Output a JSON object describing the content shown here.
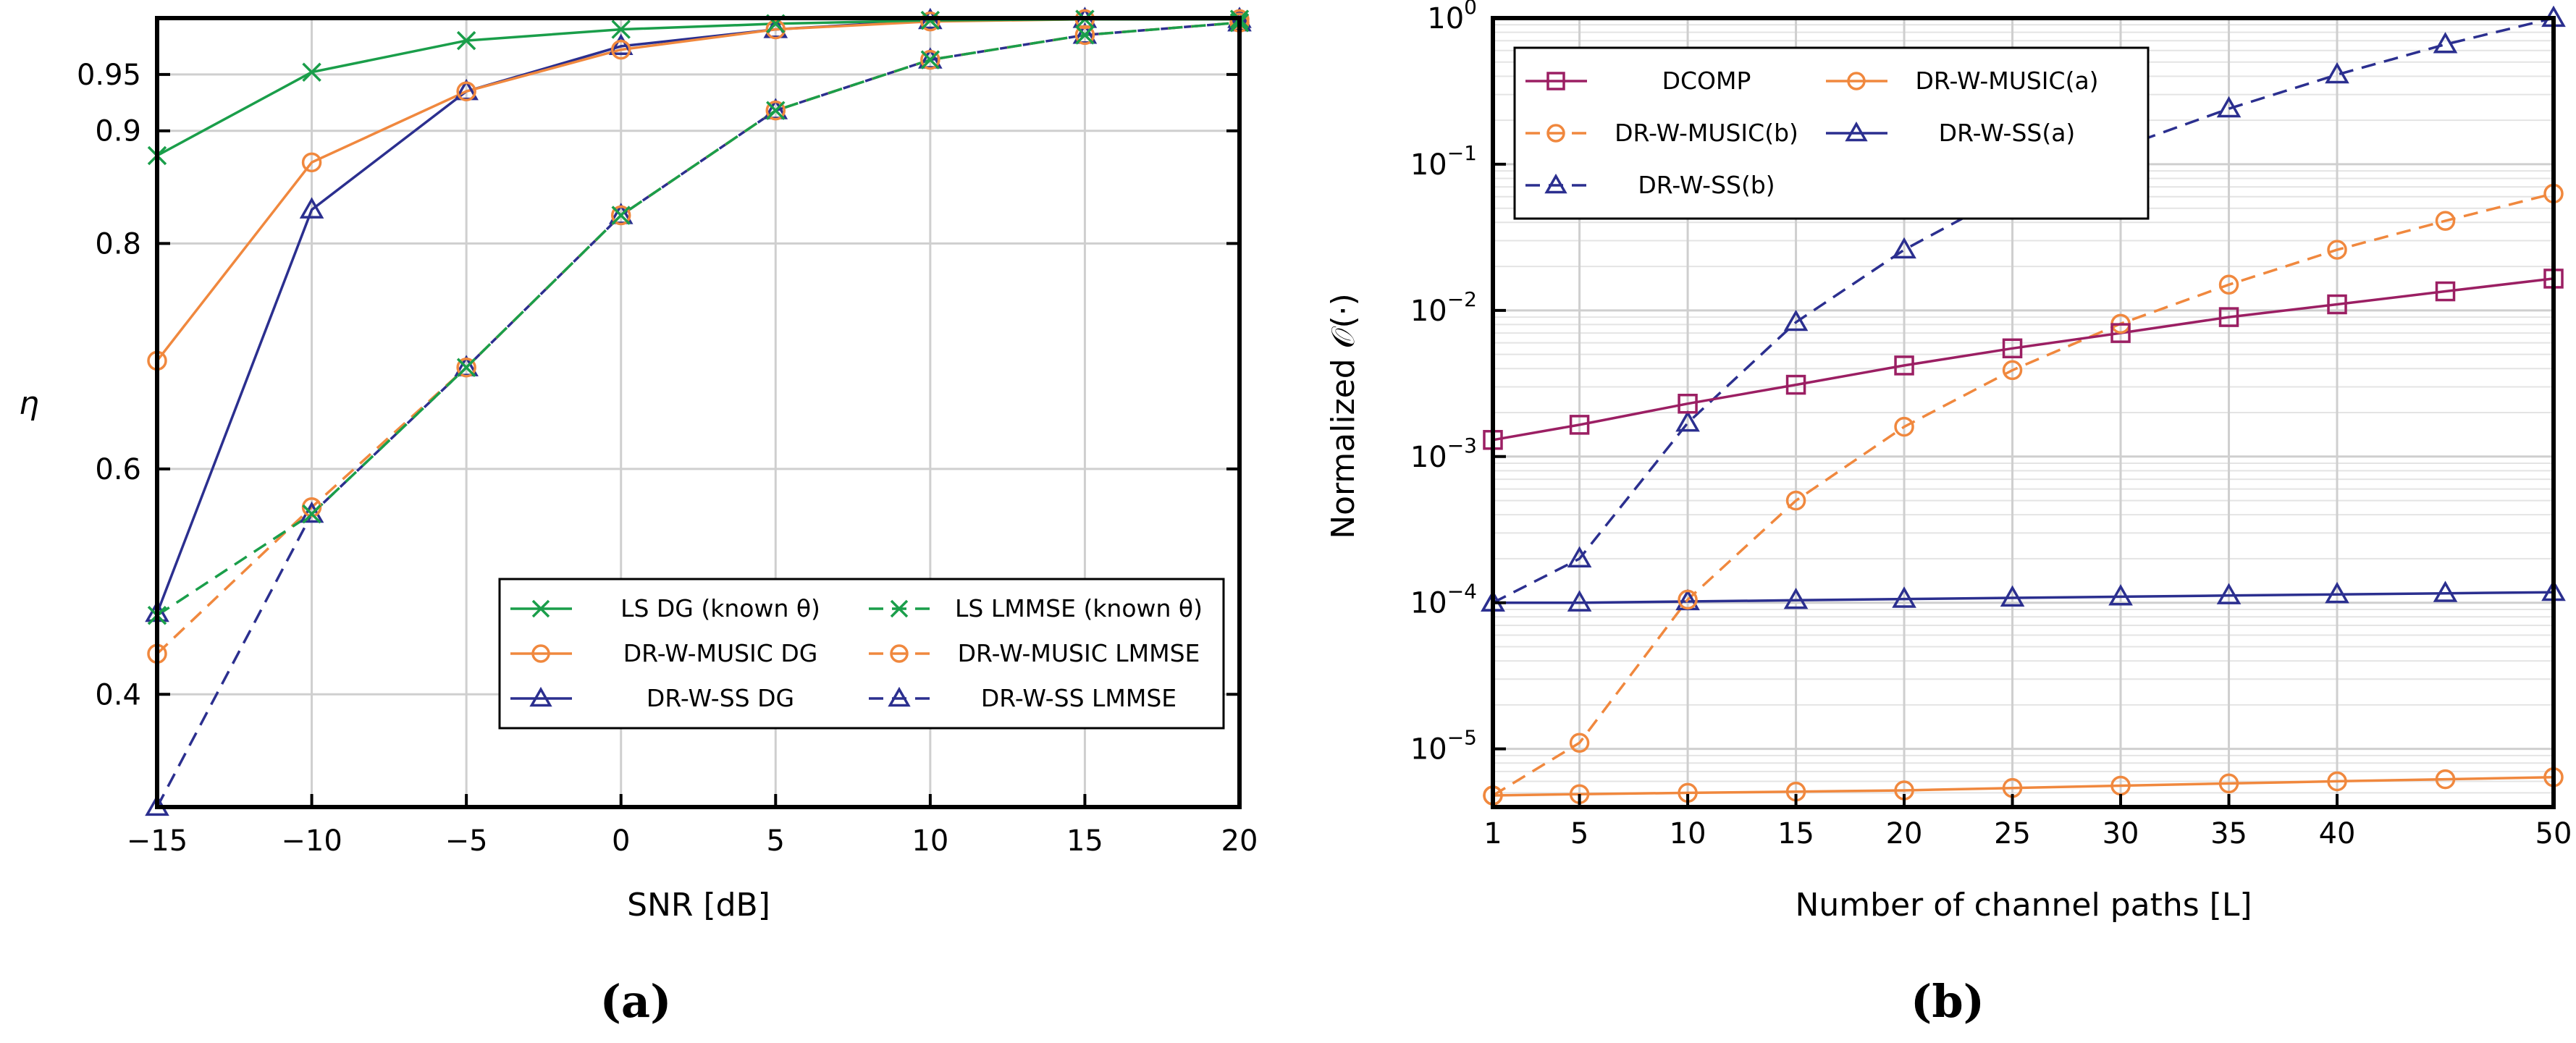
{
  "chart_data": [
    {
      "panel": "(a)",
      "type": "line",
      "xlabel": "SNR [dB]",
      "ylabel": "η",
      "xlim": [
        -15,
        20
      ],
      "ylim": [
        0.3,
        1.0
      ],
      "x": [
        -15,
        -10,
        -5,
        0,
        5,
        10,
        15,
        20
      ],
      "x_tick_labels": [
        "−15",
        "−10",
        "−5",
        "0",
        "5",
        "10",
        "15",
        "20"
      ],
      "y_ticks": [
        0.4,
        0.6,
        0.8,
        0.9,
        0.95
      ],
      "y_tick_labels": [
        "0.4",
        "0.6",
        "0.8",
        "0.9",
        "0.95"
      ],
      "grid": true,
      "legend_position": "bottom-right",
      "series": [
        {
          "name": "LS DG (known θ)",
          "color": "#1a9e4a",
          "dash": false,
          "marker": "x",
          "values": [
            0.878,
            0.952,
            0.98,
            0.99,
            0.995,
            0.998,
            0.999,
            0.999
          ]
        },
        {
          "name": "LS LMMSE (known θ)",
          "color": "#1a9e4a",
          "dash": true,
          "marker": "x",
          "values": [
            0.47,
            0.56,
            0.69,
            0.825,
            0.918,
            0.963,
            0.985,
            0.996
          ]
        },
        {
          "name": "DR-W-MUSIC DG",
          "color": "#f0883e",
          "dash": false,
          "marker": "circle",
          "values": [
            0.696,
            0.872,
            0.935,
            0.972,
            0.99,
            0.997,
            0.999,
            0.999
          ]
        },
        {
          "name": "DR-W-MUSIC LMMSE",
          "color": "#f0883e",
          "dash": true,
          "marker": "circle",
          "values": [
            0.436,
            0.566,
            0.69,
            0.825,
            0.918,
            0.963,
            0.985,
            0.996
          ]
        },
        {
          "name": "DR-W-SS DG",
          "color": "#2b2f8f",
          "dash": false,
          "marker": "triangle",
          "values": [
            0.472,
            0.83,
            0.935,
            0.975,
            0.99,
            0.998,
            0.999,
            0.999
          ]
        },
        {
          "name": "DR-W-SS LMMSE",
          "color": "#2b2f8f",
          "dash": true,
          "marker": "triangle",
          "values": [
            0.3,
            0.56,
            0.69,
            0.825,
            0.918,
            0.963,
            0.985,
            0.996
          ]
        }
      ]
    },
    {
      "panel": "(b)",
      "type": "line",
      "xlabel": "Number of channel paths [L]",
      "ylabel": "Normalized 𝒪(·)",
      "yscale": "log",
      "xlim": [
        1,
        50
      ],
      "ylim": [
        4e-06,
        1.0
      ],
      "x_ticks": [
        1,
        5,
        10,
        15,
        20,
        25,
        30,
        35,
        40,
        50
      ],
      "x_tick_labels": [
        "1",
        "5",
        "10",
        "15",
        "20",
        "25",
        "30",
        "35",
        "40",
        "50"
      ],
      "y_ticks": [
        1e-05,
        0.0001,
        0.001,
        0.01,
        0.1,
        1
      ],
      "y_tick_labels": [
        {
          "base": "10",
          "exp": "−5"
        },
        {
          "base": "10",
          "exp": "−4"
        },
        {
          "base": "10",
          "exp": "−3"
        },
        {
          "base": "10",
          "exp": "−2"
        },
        {
          "base": "10",
          "exp": "−1"
        },
        {
          "base": "10",
          "exp": "0"
        }
      ],
      "grid": true,
      "legend_position": "top-left",
      "series": [
        {
          "name": "DCOMP",
          "color": "#9b1f63",
          "dash": false,
          "marker": "square",
          "x": [
            1,
            5,
            10,
            15,
            20,
            25,
            30,
            35,
            40,
            45,
            50
          ],
          "values": [
            0.0013,
            0.00165,
            0.0023,
            0.0031,
            0.0042,
            0.0055,
            0.007,
            0.009,
            0.011,
            0.0135,
            0.0165
          ]
        },
        {
          "name": "DR-W-MUSIC(a)",
          "color": "#f0883e",
          "dash": false,
          "marker": "circle",
          "x": [
            1,
            5,
            10,
            15,
            20,
            25,
            30,
            35,
            40,
            45,
            50
          ],
          "values": [
            4.8e-06,
            4.9e-06,
            5e-06,
            5.1e-06,
            5.2e-06,
            5.4e-06,
            5.6e-06,
            5.8e-06,
            6e-06,
            6.2e-06,
            6.4e-06
          ]
        },
        {
          "name": "DR-W-MUSIC(b)",
          "color": "#f0883e",
          "dash": true,
          "marker": "circle",
          "x": [
            1,
            5,
            10,
            15,
            20,
            25,
            30,
            35,
            40,
            45,
            50
          ],
          "values": [
            4.8e-06,
            1.1e-05,
            0.000105,
            0.0005,
            0.0016,
            0.0039,
            0.0081,
            0.015,
            0.026,
            0.041,
            0.063
          ]
        },
        {
          "name": "DR-W-SS(a)",
          "color": "#2b2f8f",
          "dash": false,
          "marker": "triangle",
          "x": [
            1,
            5,
            10,
            15,
            20,
            25,
            30,
            35,
            40,
            45,
            50
          ],
          "values": [
            0.0001,
            0.0001,
            0.000102,
            0.000104,
            0.000106,
            0.000108,
            0.00011,
            0.000112,
            0.000114,
            0.000116,
            0.000118
          ]
        },
        {
          "name": "DR-W-SS(b)",
          "color": "#2b2f8f",
          "dash": true,
          "marker": "triangle",
          "x": [
            1,
            5,
            10,
            15,
            20,
            25,
            30,
            35,
            40,
            45,
            50
          ],
          "values": [
            0.0001,
            0.0002,
            0.0017,
            0.0083,
            0.026,
            0.065,
            0.13,
            0.24,
            0.41,
            0.66,
            1.0
          ]
        }
      ]
    }
  ]
}
